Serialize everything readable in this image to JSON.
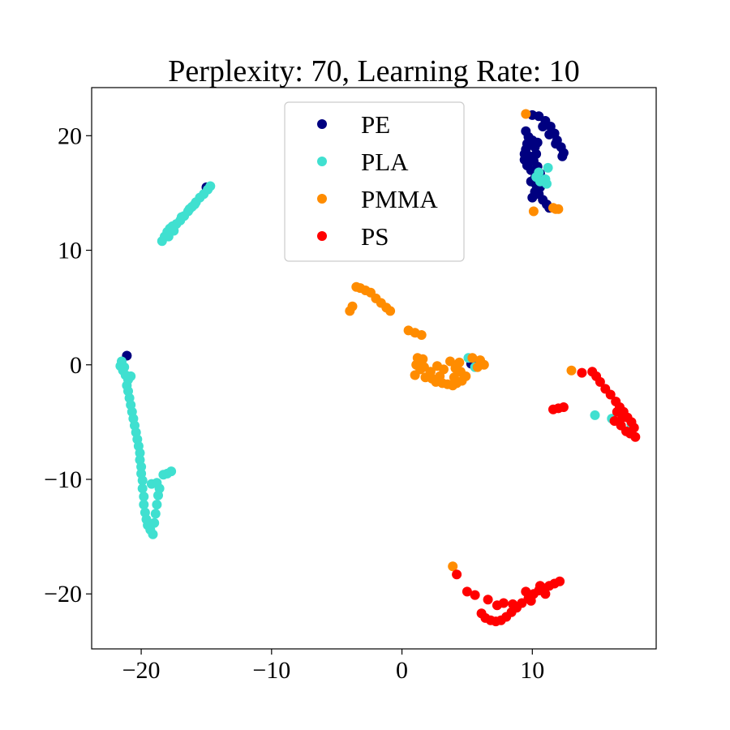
{
  "chart_data": {
    "type": "scatter",
    "title": "Perplexity: 70, Learning Rate: 10",
    "xlabel": "",
    "ylabel": "",
    "xlim": [
      -23.8,
      19.5
    ],
    "ylim": [
      -24.8,
      24.2
    ],
    "xticks": [
      -20,
      -10,
      0,
      10
    ],
    "yticks": [
      -20,
      -10,
      0,
      10,
      20
    ],
    "xtick_labels": [
      "−20",
      "−10",
      "0",
      "10"
    ],
    "ytick_labels": [
      "−20",
      "−10",
      "0",
      "10",
      "20"
    ],
    "grid": false,
    "legend_position": "top-center",
    "series": [
      {
        "name": "PE",
        "color": "#000080",
        "points": [
          [
            10.0,
            21.8
          ],
          [
            10.5,
            21.7
          ],
          [
            11.0,
            21.3
          ],
          [
            11.4,
            20.8
          ],
          [
            11.7,
            20.2
          ],
          [
            11.9,
            19.6
          ],
          [
            12.2,
            19.0
          ],
          [
            12.4,
            18.5
          ],
          [
            12.3,
            18.2
          ],
          [
            11.8,
            19.3
          ],
          [
            11.3,
            20.1
          ],
          [
            10.8,
            20.8
          ],
          [
            9.7,
            19.9
          ],
          [
            9.6,
            19.3
          ],
          [
            9.5,
            18.8
          ],
          [
            9.4,
            18.4
          ],
          [
            9.4,
            17.9
          ],
          [
            9.6,
            17.4
          ],
          [
            9.9,
            17.0
          ],
          [
            10.1,
            17.8
          ],
          [
            10.3,
            18.4
          ],
          [
            10.2,
            19.0
          ],
          [
            10.0,
            19.6
          ],
          [
            9.8,
            18.2
          ],
          [
            10.4,
            17.3
          ],
          [
            10.6,
            16.7
          ],
          [
            10.2,
            16.3
          ],
          [
            10.3,
            15.7
          ],
          [
            10.2,
            15.1
          ],
          [
            10.0,
            14.6
          ],
          [
            10.5,
            14.9
          ],
          [
            10.8,
            14.4
          ],
          [
            11.1,
            14.0
          ],
          [
            11.3,
            13.7
          ],
          [
            10.6,
            15.5
          ],
          [
            9.9,
            16.0
          ],
          [
            10.0,
            19.2
          ],
          [
            10.4,
            19.4
          ],
          [
            9.5,
            20.4
          ],
          [
            -21.1,
            0.8
          ],
          [
            5.3,
            0.1
          ],
          [
            -15.0,
            15.5
          ]
        ]
      },
      {
        "name": "PLA",
        "color": "#40e0d0",
        "points": [
          [
            -18.4,
            10.8
          ],
          [
            -18.2,
            11.2
          ],
          [
            -18.0,
            11.6
          ],
          [
            -17.8,
            11.9
          ],
          [
            -17.6,
            12.1
          ],
          [
            -17.3,
            12.3
          ],
          [
            -17.0,
            12.6
          ],
          [
            -16.7,
            13.0
          ],
          [
            -16.4,
            13.4
          ],
          [
            -16.1,
            13.8
          ],
          [
            -15.8,
            14.2
          ],
          [
            -15.5,
            14.6
          ],
          [
            -15.2,
            14.9
          ],
          [
            -14.9,
            15.3
          ],
          [
            -14.7,
            15.6
          ],
          [
            -16.9,
            12.9
          ],
          [
            -17.5,
            11.7
          ],
          [
            -17.9,
            11.2
          ],
          [
            -15.9,
            14.0
          ],
          [
            -16.3,
            13.6
          ],
          [
            -21.5,
            0.3
          ],
          [
            -21.6,
            -0.1
          ],
          [
            -21.4,
            -0.5
          ],
          [
            -21.2,
            -0.9
          ],
          [
            -21.0,
            -1.3
          ],
          [
            -21.1,
            -1.8
          ],
          [
            -21.0,
            -2.3
          ],
          [
            -20.9,
            -2.9
          ],
          [
            -20.8,
            -3.5
          ],
          [
            -20.7,
            -4.1
          ],
          [
            -20.6,
            -4.7
          ],
          [
            -20.5,
            -5.3
          ],
          [
            -20.4,
            -5.9
          ],
          [
            -20.3,
            -6.5
          ],
          [
            -20.2,
            -7.1
          ],
          [
            -20.1,
            -7.7
          ],
          [
            -20.1,
            -8.3
          ],
          [
            -20.0,
            -8.9
          ],
          [
            -20.0,
            -9.5
          ],
          [
            -19.9,
            -10.1
          ],
          [
            -19.9,
            -10.8
          ],
          [
            -19.8,
            -11.5
          ],
          [
            -19.8,
            -12.2
          ],
          [
            -19.7,
            -12.9
          ],
          [
            -19.6,
            -13.5
          ],
          [
            -19.5,
            -14.0
          ],
          [
            -19.3,
            -14.4
          ],
          [
            -19.1,
            -14.8
          ],
          [
            -19.0,
            -13.8
          ],
          [
            -18.9,
            -13.0
          ],
          [
            -18.8,
            -12.2
          ],
          [
            -18.7,
            -11.4
          ],
          [
            -18.6,
            -10.8
          ],
          [
            -18.8,
            -10.3
          ],
          [
            -19.2,
            -10.4
          ],
          [
            -18.3,
            -9.6
          ],
          [
            -17.7,
            -9.3
          ],
          [
            -18.0,
            -9.5
          ],
          [
            -21.3,
            -0.2
          ],
          [
            -20.8,
            -1.0
          ],
          [
            10.3,
            16.4
          ],
          [
            10.6,
            16.0
          ],
          [
            11.0,
            16.2
          ],
          [
            11.1,
            15.8
          ],
          [
            11.2,
            17.2
          ],
          [
            10.5,
            16.8
          ],
          [
            5.1,
            0.6
          ],
          [
            5.6,
            -0.2
          ],
          [
            14.8,
            -4.4
          ],
          [
            16.1,
            -4.7
          ],
          [
            17.6,
            -5.2
          ]
        ]
      },
      {
        "name": "PMMA",
        "color": "#ff8c00",
        "points": [
          [
            -3.5,
            6.8
          ],
          [
            -3.2,
            6.7
          ],
          [
            -2.8,
            6.5
          ],
          [
            -2.4,
            6.3
          ],
          [
            -2.0,
            5.8
          ],
          [
            -1.6,
            5.4
          ],
          [
            -1.2,
            5.0
          ],
          [
            -0.9,
            4.7
          ],
          [
            -3.8,
            5.1
          ],
          [
            -4.0,
            4.7
          ],
          [
            0.5,
            3.0
          ],
          [
            1.0,
            2.8
          ],
          [
            1.5,
            2.6
          ],
          [
            1.2,
            0.6
          ],
          [
            1.6,
            0.5
          ],
          [
            1.1,
            0.0
          ],
          [
            1.4,
            -0.4
          ],
          [
            1.0,
            -0.9
          ],
          [
            1.8,
            -1.1
          ],
          [
            2.3,
            -1.2
          ],
          [
            2.6,
            -1.5
          ],
          [
            3.1,
            -1.6
          ],
          [
            3.5,
            -1.7
          ],
          [
            3.9,
            -1.8
          ],
          [
            4.2,
            -1.6
          ],
          [
            4.6,
            -1.4
          ],
          [
            4.9,
            -1.0
          ],
          [
            4.5,
            -0.6
          ],
          [
            4.1,
            -0.3
          ],
          [
            4.4,
            0.2
          ],
          [
            3.7,
            0.3
          ],
          [
            3.2,
            -0.4
          ],
          [
            2.7,
            -0.1
          ],
          [
            2.2,
            -0.6
          ],
          [
            1.7,
            -0.2
          ],
          [
            5.4,
            0.6
          ],
          [
            6.0,
            0.4
          ],
          [
            6.3,
            0.0
          ],
          [
            5.8,
            -0.2
          ],
          [
            4.0,
            -1.1
          ],
          [
            2.9,
            -1.0
          ],
          [
            10.1,
            13.4
          ],
          [
            11.6,
            13.7
          ],
          [
            12.0,
            13.6
          ],
          [
            9.5,
            21.9
          ],
          [
            13.0,
            -0.5
          ],
          [
            3.9,
            -17.6
          ],
          [
            11.8,
            13.6
          ]
        ]
      },
      {
        "name": "PS",
        "color": "#ff0000",
        "points": [
          [
            4.2,
            -18.3
          ],
          [
            5.0,
            -19.8
          ],
          [
            5.6,
            -20.1
          ],
          [
            6.1,
            -21.7
          ],
          [
            6.4,
            -22.1
          ],
          [
            6.8,
            -22.3
          ],
          [
            7.2,
            -22.4
          ],
          [
            7.6,
            -22.3
          ],
          [
            8.0,
            -22.0
          ],
          [
            8.4,
            -21.6
          ],
          [
            8.8,
            -21.2
          ],
          [
            9.2,
            -20.8
          ],
          [
            9.7,
            -20.4
          ],
          [
            10.1,
            -20.0
          ],
          [
            10.5,
            -19.7
          ],
          [
            10.9,
            -19.5
          ],
          [
            11.3,
            -19.3
          ],
          [
            11.7,
            -19.1
          ],
          [
            12.1,
            -18.9
          ],
          [
            10.6,
            -19.3
          ],
          [
            9.9,
            -20.6
          ],
          [
            8.5,
            -20.9
          ],
          [
            7.8,
            -20.8
          ],
          [
            6.6,
            -20.5
          ],
          [
            7.3,
            -21.0
          ],
          [
            9.5,
            -19.8
          ],
          [
            11.0,
            -20.0
          ],
          [
            14.6,
            -0.6
          ],
          [
            14.9,
            -1.0
          ],
          [
            15.2,
            -1.5
          ],
          [
            15.6,
            -2.1
          ],
          [
            16.0,
            -2.6
          ],
          [
            16.4,
            -3.2
          ],
          [
            16.7,
            -3.7
          ],
          [
            17.0,
            -4.1
          ],
          [
            17.3,
            -4.6
          ],
          [
            17.6,
            -5.0
          ],
          [
            17.8,
            -5.5
          ],
          [
            17.5,
            -6.0
          ],
          [
            17.9,
            -6.3
          ],
          [
            16.8,
            -5.3
          ],
          [
            16.3,
            -4.9
          ],
          [
            16.9,
            -4.6
          ],
          [
            17.2,
            -5.8
          ],
          [
            11.6,
            -3.9
          ],
          [
            12.0,
            -3.8
          ],
          [
            12.4,
            -3.7
          ],
          [
            13.8,
            -0.7
          ],
          [
            16.5,
            -4.1
          ]
        ]
      }
    ]
  }
}
